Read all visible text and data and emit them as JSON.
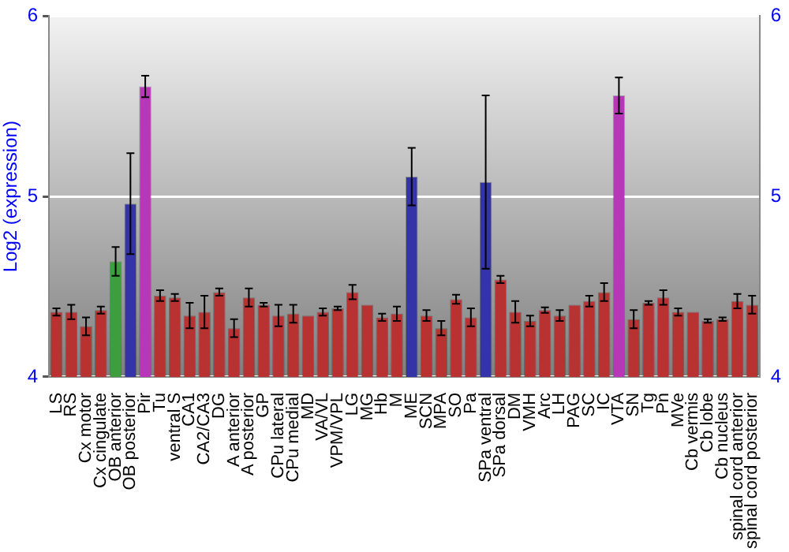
{
  "chart_data": {
    "type": "bar",
    "ylabel": "Log2 (expression)",
    "categories": [
      "LS",
      "RS",
      "Cx motor",
      "Cx cingulate",
      "OB anterior",
      "OB posterior",
      "Pir",
      "Tu",
      "ventral S",
      "CA1",
      "CA2/CA3",
      "DG",
      "A anterior",
      "A posterior",
      "GP",
      "CPu lateral",
      "CPu medial",
      "MD",
      "VA/VL",
      "VPM/VPL",
      "LG",
      "MG",
      "Hb",
      "M",
      "ME",
      "SCN",
      "MPA",
      "SO",
      "Pa",
      "SPa ventral",
      "SPa dorsal",
      "DM",
      "VMH",
      "Arc",
      "LH",
      "PAG",
      "SC",
      "IC",
      "VTA",
      "SN",
      "Tg",
      "Pn",
      "MVe",
      "Cb vermis",
      "Cb lobe",
      "Cb nucleus",
      "spinal cord anterior",
      "spinal cord posterior"
    ],
    "values": [
      4.36,
      4.36,
      4.28,
      4.37,
      4.64,
      4.96,
      5.61,
      4.45,
      4.44,
      4.34,
      4.36,
      4.47,
      4.27,
      4.44,
      4.4,
      4.34,
      4.35,
      4.34,
      4.36,
      4.38,
      4.47,
      4.4,
      4.33,
      4.35,
      5.11,
      4.34,
      4.27,
      4.43,
      4.33,
      5.08,
      4.54,
      4.36,
      4.31,
      4.37,
      4.34,
      4.4,
      4.42,
      4.47,
      5.56,
      4.32,
      4.41,
      4.44,
      4.36,
      4.36,
      4.31,
      4.32,
      4.42,
      4.4
    ],
    "errors": [
      0.02,
      0.04,
      0.05,
      0.02,
      0.08,
      0.28,
      0.06,
      0.03,
      0.02,
      0.07,
      0.09,
      0.02,
      0.05,
      0.05,
      0.01,
      0.06,
      0.05,
      null,
      0.02,
      0.01,
      0.04,
      null,
      0.02,
      0.04,
      0.16,
      0.03,
      0.04,
      0.025,
      0.05,
      0.48,
      0.02,
      0.06,
      0.03,
      0.015,
      0.03,
      null,
      0.03,
      0.05,
      0.1,
      0.05,
      0.01,
      0.04,
      0.02,
      null,
      0.01,
      0.01,
      0.04,
      0.05
    ],
    "colors": [
      "#b83232",
      "#b83232",
      "#b83232",
      "#b83232",
      "#3c9e3c",
      "#3434a8",
      "#b836b8",
      "#b83232",
      "#b83232",
      "#b83232",
      "#b83232",
      "#b83232",
      "#b83232",
      "#b83232",
      "#b83232",
      "#b83232",
      "#b83232",
      "#b83232",
      "#b83232",
      "#b83232",
      "#b83232",
      "#b83232",
      "#b83232",
      "#b83232",
      "#3434a8",
      "#b83232",
      "#b83232",
      "#b83232",
      "#b83232",
      "#3434a8",
      "#b83232",
      "#b83232",
      "#b83232",
      "#b83232",
      "#b83232",
      "#b83232",
      "#b83232",
      "#b83232",
      "#b836b8",
      "#b83232",
      "#b83232",
      "#b83232",
      "#b83232",
      "#b83232",
      "#b83232",
      "#b83232",
      "#b83232",
      "#b83232"
    ],
    "ylim": [
      4,
      6
    ],
    "yticks": [
      4,
      5,
      6
    ],
    "y2lim": [
      4,
      6
    ],
    "y2ticks": [
      4,
      5,
      6
    ],
    "grid": "y",
    "legend": false
  }
}
